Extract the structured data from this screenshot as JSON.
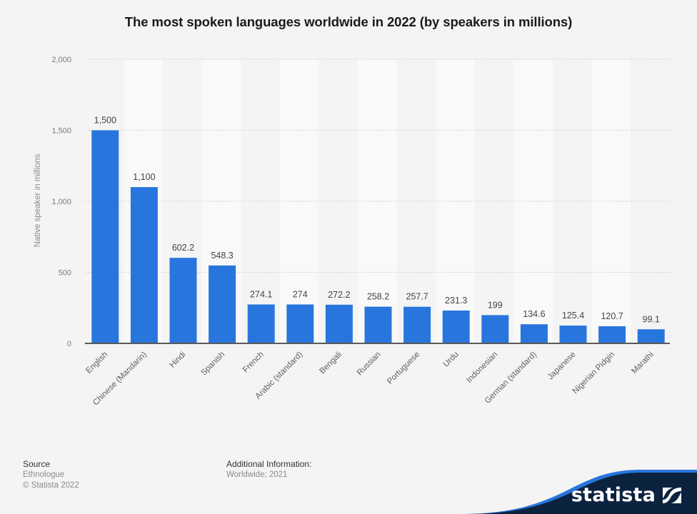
{
  "title": "The most spoken languages worldwide in 2022 (by speakers in millions)",
  "chart_data": {
    "type": "bar",
    "title": "The most spoken languages worldwide in 2022 (by speakers in millions)",
    "xlabel": "",
    "ylabel": "Native speaker in millions",
    "ylim": [
      0,
      2000
    ],
    "yticks": [
      0,
      500,
      1000,
      1500,
      2000
    ],
    "ytick_labels": [
      "0",
      "500",
      "1,000",
      "1,500",
      "2,000"
    ],
    "grid": true,
    "legend": "none",
    "bar_color": "#2876dd",
    "categories": [
      "English",
      "Chinese (Mandarin)",
      "Hindi",
      "Spanish",
      "French",
      "Arabic (standard)",
      "Bengali",
      "Russian",
      "Portuguese",
      "Urdu",
      "Indonesian",
      "German (standard)",
      "Japanese",
      "Nigerian Pidgin",
      "Marathi"
    ],
    "values": [
      1500,
      1100,
      602.2,
      548.3,
      274.1,
      274,
      272.2,
      258.2,
      257.7,
      231.3,
      199,
      134.6,
      125.4,
      120.7,
      99.1
    ],
    "value_labels": [
      "1,500",
      "1,100",
      "602.2",
      "548.3",
      "274.1",
      "274",
      "272.2",
      "258.2",
      "257.7",
      "231.3",
      "199",
      "134.6",
      "125.4",
      "120.7",
      "99.1"
    ]
  },
  "footer": {
    "source_heading": "Source",
    "source_name": "Ethnologue",
    "copyright": "© Statista 2022",
    "additional_heading": "Additional Information:",
    "additional_text": "Worldwide; 2021"
  },
  "brand": {
    "logo_text": "statista",
    "logo_icon": "statista-logo-icon",
    "dark_color": "#0c2340",
    "accent_color": "#2876dd"
  }
}
